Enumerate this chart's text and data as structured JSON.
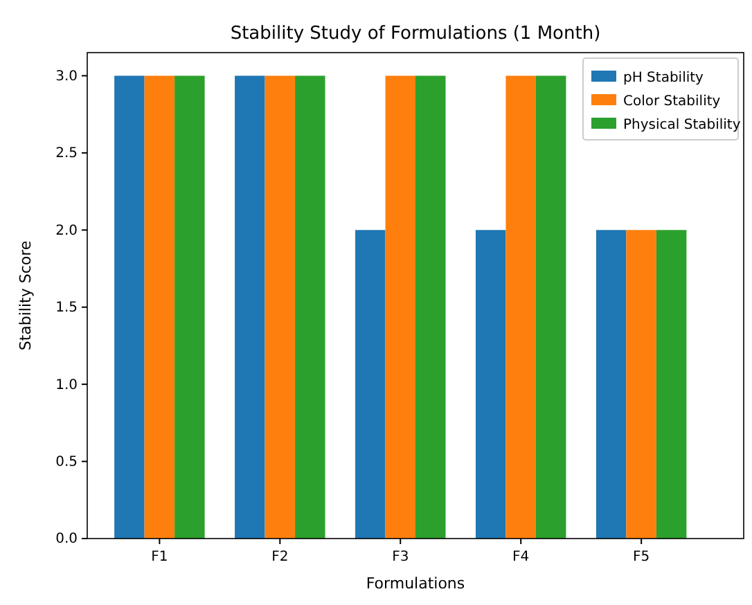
{
  "chart_data": {
    "type": "bar",
    "title": "Stability Study of Formulations (1 Month)",
    "xlabel": "Formulations",
    "ylabel": "Stability Score",
    "categories": [
      "F1",
      "F2",
      "F3",
      "F4",
      "F5"
    ],
    "series": [
      {
        "name": "pH Stability",
        "color": "#1f77b4",
        "values": [
          3,
          3,
          2,
          2,
          2
        ]
      },
      {
        "name": "Color Stability",
        "color": "#ff7f0e",
        "values": [
          3,
          3,
          3,
          3,
          2
        ]
      },
      {
        "name": "Physical Stability",
        "color": "#2ca02c",
        "values": [
          3,
          3,
          3,
          3,
          2
        ]
      }
    ],
    "ylim": [
      0,
      3.15
    ],
    "yticks": [
      {
        "value": 0,
        "label": "0.0"
      },
      {
        "value": 0.5,
        "label": "0.5"
      },
      {
        "value": 1,
        "label": "1.0"
      },
      {
        "value": 1.5,
        "label": "1.5"
      },
      {
        "value": 2,
        "label": "2.0"
      },
      {
        "value": 2.5,
        "label": "2.5"
      },
      {
        "value": 3,
        "label": "3.0"
      }
    ],
    "legend": "top right",
    "grid": false
  }
}
